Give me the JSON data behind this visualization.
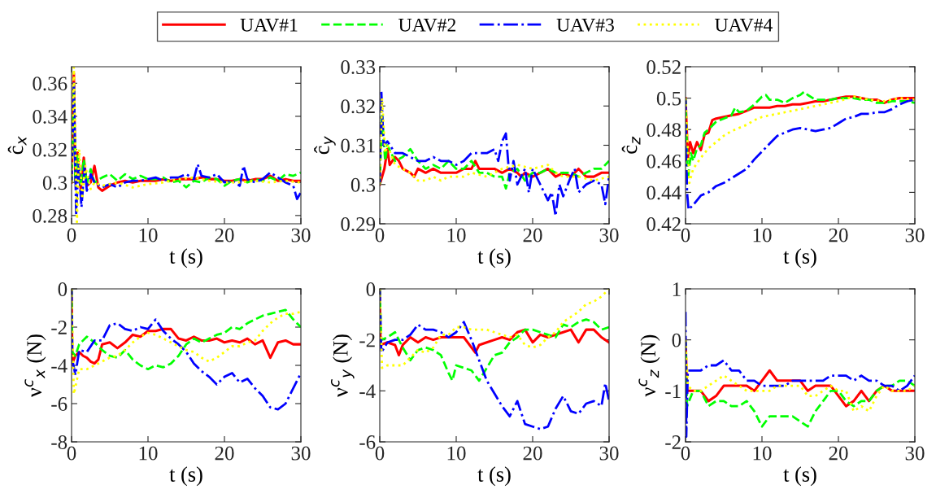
{
  "chart_data": [
    {
      "type": "line",
      "ylabel": "ĉ$_{x}$",
      "xlabel": "t (s)",
      "xlim": [
        0,
        30
      ],
      "xticks": [
        0,
        10,
        20,
        30
      ],
      "ylim": [
        0.275,
        0.37
      ],
      "yticks": [
        0.28,
        0.3,
        0.32,
        0.34,
        0.36
      ],
      "legend": "top",
      "grid": false,
      "series": [
        {
          "name": "UAV#1",
          "color": "#ff0000",
          "line_style": "solid",
          "x": [
            0,
            0.3,
            0.5,
            0.8,
            1.2,
            1.6,
            2,
            2.5,
            3,
            3.5,
            4,
            5,
            6,
            7,
            8,
            9,
            10,
            11,
            12,
            13,
            14,
            15,
            16,
            17,
            18,
            19,
            20,
            21,
            22,
            23,
            24,
            25,
            26,
            27,
            28,
            29,
            30
          ],
          "values": [
            0.3,
            0.366,
            0.3,
            0.318,
            0.296,
            0.315,
            0.298,
            0.3,
            0.31,
            0.297,
            0.295,
            0.298,
            0.3,
            0.301,
            0.3,
            0.301,
            0.301,
            0.301,
            0.302,
            0.301,
            0.302,
            0.302,
            0.302,
            0.303,
            0.302,
            0.302,
            0.301,
            0.301,
            0.302,
            0.301,
            0.302,
            0.302,
            0.304,
            0.301,
            0.302,
            0.301,
            0.301
          ]
        },
        {
          "name": "UAV#2",
          "color": "#00ff00",
          "line_style": "dashed",
          "x": [
            0,
            0.3,
            0.5,
            0.8,
            1.2,
            1.6,
            2,
            2.5,
            3,
            4,
            5,
            6,
            7,
            8,
            9,
            10,
            11,
            12,
            13,
            14,
            15,
            16,
            17,
            18,
            19,
            20,
            21,
            22,
            23,
            24,
            25,
            26,
            27,
            28,
            29,
            30
          ],
          "values": [
            0.3,
            0.358,
            0.3,
            0.316,
            0.298,
            0.314,
            0.299,
            0.308,
            0.3,
            0.303,
            0.305,
            0.301,
            0.305,
            0.302,
            0.304,
            0.302,
            0.302,
            0.303,
            0.3,
            0.301,
            0.297,
            0.301,
            0.3,
            0.303,
            0.302,
            0.298,
            0.301,
            0.302,
            0.3,
            0.302,
            0.301,
            0.303,
            0.301,
            0.305,
            0.304,
            0.306
          ]
        },
        {
          "name": "UAV#3",
          "color": "#0000ff",
          "line_style": "dashdot",
          "x": [
            0,
            0.3,
            0.6,
            0.9,
            1.3,
            1.7,
            2,
            2.5,
            3,
            4,
            5,
            6,
            7,
            8,
            9,
            10,
            11,
            12,
            13,
            14,
            15,
            16,
            16.5,
            17,
            18,
            19,
            20,
            21,
            22,
            22.5,
            23,
            24,
            25,
            26,
            27,
            28,
            29,
            29.5,
            30
          ],
          "values": [
            0.3,
            0.36,
            0.28,
            0.312,
            0.285,
            0.31,
            0.295,
            0.305,
            0.3,
            0.297,
            0.299,
            0.297,
            0.3,
            0.301,
            0.301,
            0.302,
            0.303,
            0.301,
            0.303,
            0.303,
            0.305,
            0.302,
            0.311,
            0.304,
            0.303,
            0.305,
            0.3,
            0.301,
            0.298,
            0.31,
            0.302,
            0.3,
            0.302,
            0.306,
            0.303,
            0.3,
            0.298,
            0.29,
            0.294
          ]
        },
        {
          "name": "UAV#4",
          "color": "#ffff00",
          "line_style": "dotted",
          "x": [
            0,
            0.3,
            0.7,
            1,
            1.4,
            1.8,
            2.5,
            3,
            4,
            5,
            6,
            8,
            10,
            12,
            14,
            16,
            18,
            20,
            22,
            24,
            26,
            28,
            30
          ],
          "values": [
            0.3,
            0.37,
            0.276,
            0.32,
            0.29,
            0.31,
            0.296,
            0.3,
            0.298,
            0.299,
            0.3,
            0.297,
            0.299,
            0.3,
            0.302,
            0.303,
            0.301,
            0.3,
            0.3,
            0.301,
            0.3,
            0.301,
            0.3
          ]
        }
      ]
    },
    {
      "type": "line",
      "ylabel": "ĉ$_{y}$",
      "xlabel": "t (s)",
      "xlim": [
        0,
        30
      ],
      "xticks": [
        0,
        10,
        20,
        30
      ],
      "ylim": [
        0.29,
        0.33
      ],
      "yticks": [
        0.29,
        0.3,
        0.31,
        0.32,
        0.33
      ],
      "grid": false,
      "series": [
        {
          "color": "#ff0000",
          "line_style": "solid",
          "x": [
            0,
            0.6,
            1,
            1.3,
            2,
            2.5,
            3,
            4,
            4.5,
            5,
            6,
            7,
            8,
            9,
            10,
            11,
            12,
            12.5,
            13,
            14,
            15,
            16,
            17,
            18,
            18.5,
            19,
            20,
            21,
            22,
            23,
            24,
            25,
            26,
            27,
            28,
            29,
            30
          ],
          "values": [
            0.3,
            0.304,
            0.309,
            0.305,
            0.307,
            0.306,
            0.304,
            0.303,
            0.302,
            0.304,
            0.303,
            0.304,
            0.303,
            0.303,
            0.303,
            0.304,
            0.304,
            0.306,
            0.304,
            0.304,
            0.304,
            0.303,
            0.304,
            0.303,
            0.302,
            0.303,
            0.302,
            0.303,
            0.304,
            0.302,
            0.303,
            0.302,
            0.304,
            0.302,
            0.302,
            0.303,
            0.303
          ]
        },
        {
          "color": "#00ff00",
          "line_style": "dashed",
          "x": [
            0,
            0.3,
            0.7,
            1,
            2,
            3,
            4,
            5,
            6,
            7,
            8,
            9,
            10,
            11,
            12,
            13,
            14,
            15,
            16,
            16.5,
            17,
            18,
            19,
            20,
            21,
            22,
            23,
            24,
            25,
            26,
            27,
            28,
            29,
            30
          ],
          "values": [
            0.3,
            0.318,
            0.306,
            0.31,
            0.306,
            0.307,
            0.309,
            0.306,
            0.304,
            0.305,
            0.304,
            0.306,
            0.304,
            0.304,
            0.306,
            0.303,
            0.303,
            0.302,
            0.302,
            0.299,
            0.303,
            0.304,
            0.301,
            0.303,
            0.303,
            0.304,
            0.303,
            0.303,
            0.303,
            0.302,
            0.303,
            0.304,
            0.304,
            0.306
          ]
        },
        {
          "color": "#0000ff",
          "line_style": "dashdot",
          "x": [
            0,
            0.2,
            0.5,
            1,
            2,
            3,
            4,
            5,
            6,
            7,
            8,
            9,
            10,
            11,
            12,
            13,
            14,
            15,
            15.5,
            16,
            16.5,
            17,
            17.5,
            18,
            19,
            19.5,
            20,
            21,
            22,
            22.5,
            23,
            23.5,
            24,
            25,
            25.5,
            26,
            27,
            28,
            29,
            29.5,
            30
          ],
          "values": [
            0.3,
            0.324,
            0.31,
            0.311,
            0.308,
            0.308,
            0.307,
            0.306,
            0.306,
            0.307,
            0.306,
            0.306,
            0.305,
            0.306,
            0.308,
            0.308,
            0.308,
            0.309,
            0.306,
            0.311,
            0.313,
            0.301,
            0.306,
            0.3,
            0.304,
            0.298,
            0.304,
            0.3,
            0.296,
            0.298,
            0.292,
            0.3,
            0.297,
            0.302,
            0.304,
            0.298,
            0.3,
            0.301,
            0.3,
            0.295,
            0.302
          ]
        },
        {
          "color": "#ffff00",
          "line_style": "dotted",
          "x": [
            0,
            0.3,
            0.7,
            1,
            2,
            3,
            4,
            5,
            6,
            7,
            8,
            9,
            10,
            11,
            12,
            14,
            16,
            18,
            20,
            22,
            23,
            24,
            26,
            28,
            30
          ],
          "values": [
            0.3,
            0.322,
            0.308,
            0.31,
            0.305,
            0.304,
            0.303,
            0.301,
            0.301,
            0.302,
            0.301,
            0.302,
            0.302,
            0.302,
            0.303,
            0.302,
            0.304,
            0.305,
            0.304,
            0.305,
            0.303,
            0.302,
            0.302,
            0.301,
            0.302
          ]
        }
      ]
    },
    {
      "type": "line",
      "ylabel": "ĉ$_{z}$",
      "xlabel": "t (s)",
      "xlim": [
        0,
        30
      ],
      "xticks": [
        0,
        10,
        20,
        30
      ],
      "ylim": [
        0.42,
        0.52
      ],
      "yticks": [
        0.42,
        0.44,
        0.46,
        0.48,
        0.5,
        0.52
      ],
      "grid": false,
      "series": [
        {
          "color": "#ff0000",
          "line_style": "solid",
          "x": [
            0,
            0.3,
            0.6,
            1,
            1.5,
            2,
            2.5,
            3,
            3.5,
            4,
            5,
            6,
            7,
            8,
            9,
            10,
            11,
            12,
            13,
            14,
            15,
            16,
            17,
            18,
            19,
            20,
            21,
            22,
            23,
            24,
            25,
            26,
            27,
            28,
            29,
            30
          ],
          "values": [
            0.5,
            0.462,
            0.472,
            0.465,
            0.472,
            0.467,
            0.477,
            0.478,
            0.486,
            0.487,
            0.488,
            0.489,
            0.49,
            0.492,
            0.494,
            0.494,
            0.494,
            0.495,
            0.495,
            0.496,
            0.496,
            0.497,
            0.498,
            0.498,
            0.499,
            0.5,
            0.501,
            0.501,
            0.5,
            0.499,
            0.499,
            0.497,
            0.499,
            0.5,
            0.5,
            0.5
          ]
        },
        {
          "color": "#00ff00",
          "line_style": "dashed",
          "x": [
            0,
            0.3,
            0.7,
            1,
            1.5,
            2,
            2.5,
            3,
            4,
            5,
            6,
            6.5,
            7,
            8,
            9,
            10,
            10.5,
            11,
            12,
            13,
            14,
            15,
            15.5,
            16,
            17,
            18,
            19,
            20,
            21,
            22,
            23,
            24,
            25,
            26,
            27,
            28,
            29,
            30
          ],
          "values": [
            0.5,
            0.448,
            0.465,
            0.46,
            0.468,
            0.47,
            0.478,
            0.48,
            0.485,
            0.487,
            0.489,
            0.494,
            0.491,
            0.492,
            0.496,
            0.501,
            0.502,
            0.499,
            0.499,
            0.497,
            0.5,
            0.502,
            0.504,
            0.502,
            0.499,
            0.499,
            0.499,
            0.5,
            0.5,
            0.5,
            0.499,
            0.499,
            0.497,
            0.497,
            0.498,
            0.498,
            0.498,
            0.497
          ]
        },
        {
          "color": "#0000ff",
          "line_style": "dashdot",
          "x": [
            0,
            0.2,
            0.4,
            1,
            2,
            3,
            4,
            5,
            6,
            7,
            8,
            9,
            10,
            11,
            12,
            13,
            14,
            15,
            16,
            17,
            18,
            19,
            20,
            21,
            22,
            23,
            24,
            25,
            26,
            27,
            28,
            29,
            30
          ],
          "values": [
            0.5,
            0.44,
            0.429,
            0.432,
            0.438,
            0.44,
            0.444,
            0.446,
            0.449,
            0.452,
            0.455,
            0.461,
            0.466,
            0.471,
            0.476,
            0.478,
            0.48,
            0.481,
            0.48,
            0.479,
            0.48,
            0.481,
            0.484,
            0.487,
            0.488,
            0.49,
            0.49,
            0.491,
            0.491,
            0.493,
            0.496,
            0.498,
            0.499
          ]
        },
        {
          "color": "#ffff00",
          "line_style": "dotted",
          "x": [
            0,
            0.5,
            1,
            2,
            3,
            4,
            5,
            6,
            7,
            8,
            9,
            10,
            12,
            14,
            16,
            18,
            20,
            22,
            24,
            26,
            28,
            30
          ],
          "values": [
            0.5,
            0.446,
            0.455,
            0.462,
            0.468,
            0.472,
            0.476,
            0.479,
            0.481,
            0.483,
            0.486,
            0.488,
            0.49,
            0.492,
            0.494,
            0.496,
            0.498,
            0.501,
            0.499,
            0.498,
            0.5,
            0.499
          ]
        }
      ]
    },
    {
      "type": "line",
      "ylabel": "ν$^{c}$$_{x}$ (N)",
      "xlabel": "t (s)",
      "xlim": [
        0,
        30
      ],
      "xticks": [
        0,
        10,
        20,
        30
      ],
      "ylim": [
        -8,
        0
      ],
      "yticks": [
        -8,
        -6,
        -4,
        -2,
        0
      ],
      "grid": false,
      "series": [
        {
          "color": "#ff0000",
          "line_style": "solid",
          "x": [
            0,
            0.1,
            0.5,
            1,
            1.5,
            2,
            2.5,
            3,
            3.5,
            4,
            5,
            6,
            7,
            8,
            9,
            10,
            11,
            12,
            13,
            14,
            15,
            16,
            17,
            18,
            19,
            20,
            21,
            22,
            23,
            24,
            25,
            26,
            27,
            28,
            29,
            30
          ],
          "values": [
            0,
            -3.9,
            -3.5,
            -3.3,
            -3.5,
            -3.6,
            -3.8,
            -3.9,
            -3.7,
            -2.9,
            -2.8,
            -3.1,
            -2.8,
            -2.4,
            -2.5,
            -2.2,
            -2.2,
            -2.1,
            -2.1,
            -2.6,
            -2.7,
            -2.5,
            -2.7,
            -2.7,
            -2.6,
            -2.8,
            -2.7,
            -2.8,
            -2.6,
            -2.9,
            -2.7,
            -3.6,
            -2.8,
            -2.7,
            -2.9,
            -2.9
          ]
        },
        {
          "color": "#00ff00",
          "line_style": "dashed",
          "x": [
            0,
            0.1,
            0.5,
            1,
            2,
            3,
            4,
            5,
            6,
            7,
            8,
            9,
            10,
            11,
            12,
            13,
            14,
            15,
            16,
            17,
            18,
            19,
            20,
            21,
            22,
            23,
            24,
            25,
            26,
            27,
            28,
            29,
            30
          ],
          "values": [
            0,
            -3.3,
            -3.5,
            -2.9,
            -2.5,
            -2.8,
            -3.2,
            -3.5,
            -3.6,
            -3.2,
            -3.7,
            -4.0,
            -4.2,
            -4.0,
            -4.1,
            -3.9,
            -3.5,
            -2.9,
            -2.6,
            -2.8,
            -2.6,
            -2.4,
            -2.3,
            -2.0,
            -2.1,
            -1.8,
            -1.6,
            -1.4,
            -1.3,
            -1.2,
            -1.1,
            -1.6,
            -2.0
          ]
        },
        {
          "color": "#0000ff",
          "line_style": "dashdot",
          "x": [
            0,
            0.1,
            0.5,
            1,
            2,
            3,
            4,
            5,
            6,
            7,
            8,
            9,
            10,
            11,
            12,
            13,
            14,
            15,
            16,
            17,
            18,
            19,
            20,
            21,
            22,
            23,
            24,
            25,
            26,
            27,
            28,
            29,
            30
          ],
          "values": [
            0,
            -3.7,
            -4.5,
            -3.2,
            -3.3,
            -2.7,
            -2.7,
            -1.9,
            -1.8,
            -2.1,
            -2.2,
            -2.0,
            -2.1,
            -1.6,
            -2.2,
            -2.6,
            -2.9,
            -3.3,
            -3.9,
            -4.3,
            -4.6,
            -5.0,
            -4.6,
            -4.4,
            -4.9,
            -4.7,
            -5.2,
            -5.6,
            -6.2,
            -6.3,
            -6.0,
            -5.2,
            -4.4
          ]
        },
        {
          "color": "#ffff00",
          "line_style": "dotted",
          "x": [
            0,
            0.3,
            1,
            2,
            3,
            4,
            5,
            6,
            7,
            8,
            9,
            10,
            11,
            12,
            13,
            14,
            15,
            16,
            17,
            18,
            19,
            20,
            21,
            22,
            23,
            24,
            25,
            26,
            27,
            28,
            29,
            30
          ],
          "values": [
            0,
            -5.5,
            -4.2,
            -4.2,
            -4.0,
            -3.8,
            -3.6,
            -3.5,
            -3.2,
            -2.8,
            -2.5,
            -2.3,
            -2.4,
            -2.6,
            -2.8,
            -3.0,
            -3.2,
            -3.3,
            -3.6,
            -3.8,
            -3.6,
            -3.3,
            -3.0,
            -3.0,
            -2.8,
            -2.7,
            -2.2,
            -1.8,
            -1.5,
            -1.3,
            -1.3,
            -1.2
          ]
        }
      ]
    },
    {
      "type": "line",
      "ylabel": "ν$^{c}$$_{y}$ (N)",
      "xlabel": "t (s)",
      "xlim": [
        0,
        30
      ],
      "xticks": [
        0,
        10,
        20,
        30
      ],
      "ylim": [
        -6,
        0
      ],
      "yticks": [
        -6,
        -4,
        -2,
        0
      ],
      "grid": false,
      "series": [
        {
          "color": "#ff0000",
          "line_style": "solid",
          "x": [
            0,
            0.1,
            1,
            2,
            2.5,
            3,
            4,
            5,
            6,
            7,
            8,
            9,
            10,
            11,
            12,
            12.5,
            13,
            14,
            15,
            16,
            17,
            18,
            19,
            20,
            21,
            22,
            23,
            24,
            25,
            26,
            27,
            28,
            29,
            30
          ],
          "values": [
            0,
            -2.2,
            -2.1,
            -2.2,
            -2.6,
            -2.2,
            -1.9,
            -2.1,
            -1.9,
            -2.0,
            -1.9,
            -1.9,
            -1.9,
            -1.9,
            -2.3,
            -2.5,
            -2.2,
            -2.1,
            -2.0,
            -1.9,
            -2.0,
            -1.7,
            -1.6,
            -2.1,
            -1.8,
            -1.9,
            -1.8,
            -1.7,
            -1.6,
            -2.1,
            -1.6,
            -1.6,
            -1.9,
            -2.1
          ]
        },
        {
          "color": "#00ff00",
          "line_style": "dashed",
          "x": [
            0,
            0.2,
            1,
            2,
            3,
            4,
            5,
            6,
            7,
            8,
            9,
            9.5,
            10,
            11,
            12,
            13,
            14,
            15,
            16,
            17,
            18,
            19,
            20,
            21,
            22,
            23,
            24,
            25,
            26,
            27,
            28,
            29,
            30
          ],
          "values": [
            0,
            -2.0,
            -1.9,
            -1.7,
            -2.3,
            -2.8,
            -2.4,
            -2.3,
            -2.4,
            -2.6,
            -3.3,
            -3.6,
            -3.0,
            -3.1,
            -3.2,
            -3.6,
            -3.1,
            -2.6,
            -2.5,
            -2.1,
            -1.9,
            -1.6,
            -1.6,
            -1.7,
            -1.8,
            -1.9,
            -1.4,
            -1.5,
            -1.3,
            -1.2,
            -1.3,
            -1.6,
            -1.5
          ]
        },
        {
          "color": "#0000ff",
          "line_style": "dashdot",
          "x": [
            0,
            0.2,
            1,
            2,
            3,
            4,
            5,
            6,
            7,
            8,
            9,
            10,
            11,
            12,
            13,
            14,
            15,
            16,
            17,
            18,
            19,
            20,
            21,
            22,
            23,
            24,
            25,
            26,
            27,
            28,
            29,
            29.5,
            30
          ],
          "values": [
            0,
            -2.5,
            -2.1,
            -2.0,
            -2.0,
            -1.8,
            -1.4,
            -1.6,
            -1.6,
            -1.7,
            -1.9,
            -1.7,
            -1.3,
            -2.0,
            -2.8,
            -3.6,
            -4.1,
            -4.6,
            -5.0,
            -4.4,
            -5.3,
            -5.4,
            -5.5,
            -5.4,
            -4.7,
            -4.2,
            -4.8,
            -4.9,
            -4.5,
            -4.4,
            -4.6,
            -3.7,
            -4.4
          ]
        },
        {
          "color": "#ffff00",
          "line_style": "dotted",
          "x": [
            0,
            0.3,
            1,
            2,
            3,
            4,
            5,
            6,
            7,
            8,
            9,
            10,
            11,
            12,
            13,
            14,
            15,
            16,
            17,
            18,
            19,
            20,
            21,
            22,
            23,
            24,
            25,
            26,
            27,
            28,
            29,
            30
          ],
          "values": [
            0,
            -3.1,
            -3.0,
            -3.0,
            -3.0,
            -2.7,
            -2.4,
            -2.5,
            -2.3,
            -1.8,
            -1.8,
            -1.5,
            -1.5,
            -1.6,
            -1.6,
            -1.6,
            -1.7,
            -1.8,
            -1.9,
            -1.8,
            -2.2,
            -2.3,
            -2.2,
            -1.9,
            -1.7,
            -1.3,
            -1.1,
            -0.9,
            -0.6,
            -0.5,
            -0.3,
            0
          ]
        }
      ]
    },
    {
      "type": "line",
      "ylabel": "ν$^{c}$$_{z}$ (N)",
      "xlabel": "t (s)",
      "xlim": [
        0,
        30
      ],
      "xticks": [
        0,
        10,
        20,
        30
      ],
      "ylim": [
        -2,
        1
      ],
      "yticks": [
        -2,
        -1,
        0,
        1
      ],
      "grid": false,
      "series": [
        {
          "color": "#ff0000",
          "line_style": "solid",
          "x": [
            0,
            0.2,
            1,
            2,
            3,
            4,
            5,
            6,
            7,
            8,
            9,
            10,
            11,
            12,
            13,
            14,
            15,
            16,
            17,
            18,
            19,
            20,
            21,
            22,
            23,
            24,
            25,
            26,
            27,
            28,
            29,
            30
          ],
          "values": [
            0,
            -1.0,
            -1.0,
            -1.0,
            -1.2,
            -1.1,
            -0.9,
            -0.9,
            -0.9,
            -0.9,
            -1.0,
            -0.8,
            -0.6,
            -0.8,
            -0.8,
            -0.8,
            -0.8,
            -1.0,
            -0.9,
            -0.9,
            -0.9,
            -1.1,
            -1.3,
            -1.2,
            -1.0,
            -1.2,
            -1.0,
            -0.9,
            -1.0,
            -1.0,
            -1.0,
            -1.0
          ]
        },
        {
          "color": "#00ff00",
          "line_style": "dashed",
          "x": [
            0,
            0.2,
            1,
            2,
            3,
            4,
            5,
            6,
            7,
            8,
            9,
            10,
            11,
            12,
            13,
            14,
            15,
            16,
            17,
            18,
            19,
            20,
            21,
            22,
            23,
            24,
            25,
            26,
            27,
            28,
            29,
            30
          ],
          "values": [
            0,
            -1.3,
            -1.0,
            -1.0,
            -1.3,
            -1.2,
            -1.2,
            -1.3,
            -1.3,
            -1.2,
            -1.4,
            -1.7,
            -1.5,
            -1.5,
            -1.5,
            -1.5,
            -1.6,
            -1.7,
            -1.4,
            -1.2,
            -1.0,
            -1.0,
            -1.2,
            -1.3,
            -1.2,
            -1.2,
            -1.0,
            -0.9,
            -0.9,
            -0.8,
            -0.8,
            -0.9
          ]
        },
        {
          "color": "#0000ff",
          "line_style": "dashdot",
          "x": [
            0,
            0.1,
            0.3,
            1,
            2,
            3,
            4,
            5,
            6,
            7,
            8,
            9,
            10,
            11,
            12,
            13,
            14,
            15,
            16,
            17,
            18,
            19,
            20,
            21,
            22,
            23,
            24,
            25,
            26,
            27,
            28,
            29,
            30
          ],
          "values": [
            0.55,
            -1.9,
            -0.6,
            -0.6,
            -0.6,
            -0.5,
            -0.5,
            -0.4,
            -0.6,
            -0.6,
            -0.8,
            -0.8,
            -0.9,
            -0.9,
            -0.9,
            -0.9,
            -0.8,
            -0.8,
            -0.8,
            -0.8,
            -0.8,
            -0.7,
            -0.7,
            -0.7,
            -0.8,
            -0.7,
            -0.8,
            -0.8,
            -0.9,
            -0.9,
            -1.0,
            -0.9,
            -0.7
          ]
        },
        {
          "color": "#ffff00",
          "line_style": "dotted",
          "x": [
            0,
            0.3,
            1,
            2,
            3,
            4,
            5,
            6,
            7,
            8,
            9,
            10,
            11,
            12,
            13,
            14,
            15,
            16,
            17,
            18,
            19,
            20,
            21,
            22,
            23,
            24,
            25,
            26,
            27,
            28,
            29,
            30
          ],
          "values": [
            0,
            -0.9,
            -1.0,
            -1.0,
            -0.9,
            -0.8,
            -0.7,
            -0.8,
            -0.9,
            -1.0,
            -1.0,
            -1.0,
            -1.0,
            -0.9,
            -0.9,
            -0.9,
            -0.9,
            -1.1,
            -1.1,
            -1.0,
            -0.9,
            -1.0,
            -1.0,
            -1.4,
            -1.3,
            -1.4,
            -1.1,
            -0.9,
            -1.0,
            -1.0,
            -1.0,
            -0.9
          ]
        }
      ]
    }
  ]
}
